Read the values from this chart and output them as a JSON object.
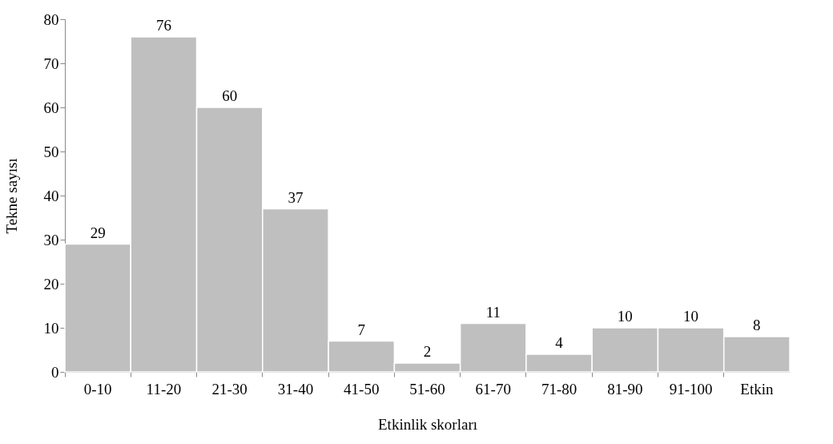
{
  "chart_data": {
    "type": "bar",
    "xlabel": "Etkinlik skorları",
    "ylabel": "Tekne sayısı",
    "categories": [
      "0-10",
      "11-20",
      "21-30",
      "31-40",
      "41-50",
      "51-60",
      "61-70",
      "71-80",
      "81-90",
      "91-100",
      "Etkin"
    ],
    "values": [
      29,
      76,
      60,
      37,
      7,
      2,
      11,
      4,
      10,
      10,
      8
    ],
    "color": "#bfbfbf",
    "ylim": [
      0,
      80
    ],
    "yticks": [
      0,
      10,
      20,
      30,
      40,
      50,
      60,
      70,
      80
    ],
    "grid": false,
    "data_labels": true
  }
}
